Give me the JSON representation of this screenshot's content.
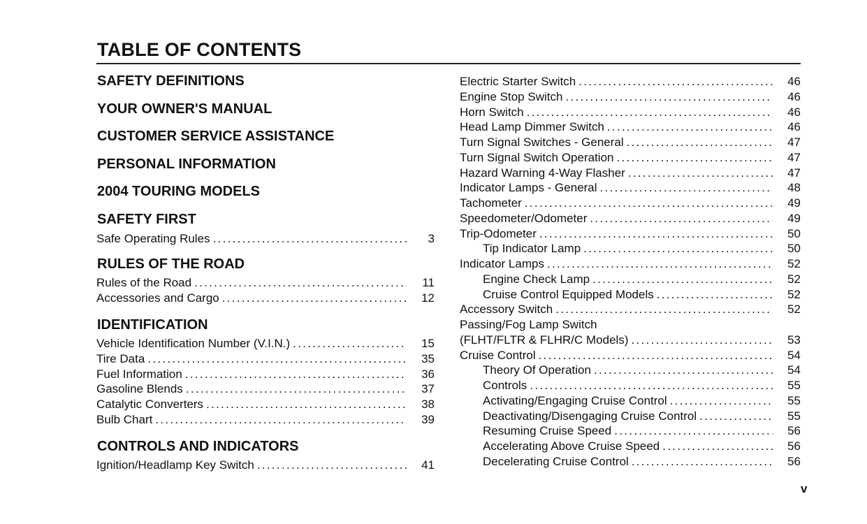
{
  "title": "TABLE OF CONTENTS",
  "page_number": "v",
  "left_column": [
    {
      "type": "heading",
      "text": "SAFETY DEFINITIONS"
    },
    {
      "type": "heading",
      "text": "YOUR OWNER'S MANUAL"
    },
    {
      "type": "heading",
      "text": "CUSTOMER SERVICE ASSISTANCE"
    },
    {
      "type": "heading",
      "text": "PERSONAL INFORMATION"
    },
    {
      "type": "heading",
      "text": "2004 TOURING MODELS"
    },
    {
      "type": "heading",
      "text": "SAFETY FIRST"
    },
    {
      "type": "entry",
      "text": "Safe Operating Rules",
      "page": "3"
    },
    {
      "type": "heading",
      "text": "RULES OF THE ROAD"
    },
    {
      "type": "entry",
      "text": "Rules of the Road",
      "page": "11"
    },
    {
      "type": "entry",
      "text": "Accessories and Cargo",
      "page": "12"
    },
    {
      "type": "heading",
      "text": "IDENTIFICATION"
    },
    {
      "type": "entry",
      "text": "Vehicle Identification Number (V.I.N.)",
      "page": "15"
    },
    {
      "type": "entry",
      "text": "Tire Data",
      "page": "35"
    },
    {
      "type": "entry",
      "text": "Fuel Information",
      "page": "36"
    },
    {
      "type": "entry",
      "text": "Gasoline Blends",
      "page": "37"
    },
    {
      "type": "entry",
      "text": "Catalytic Converters",
      "page": "38"
    },
    {
      "type": "entry",
      "text": "Bulb Chart",
      "page": "39"
    },
    {
      "type": "heading",
      "text": "CONTROLS AND INDICATORS"
    },
    {
      "type": "entry",
      "text": "Ignition/Headlamp Key Switch",
      "page": "41"
    }
  ],
  "right_column": [
    {
      "text": "Electric Starter Switch",
      "page": "46",
      "indent": false
    },
    {
      "text": "Engine Stop Switch",
      "page": "46",
      "indent": false
    },
    {
      "text": "Horn Switch",
      "page": "46",
      "indent": false
    },
    {
      "text": "Head Lamp Dimmer Switch",
      "page": "46",
      "indent": false
    },
    {
      "text": "Turn Signal Switches - General",
      "page": "47",
      "indent": false
    },
    {
      "text": "Turn Signal Switch Operation",
      "page": "47",
      "indent": false
    },
    {
      "text": "Hazard Warning 4-Way Flasher",
      "page": "47",
      "indent": false
    },
    {
      "text": "Indicator Lamps - General",
      "page": "48",
      "indent": false
    },
    {
      "text": "Tachometer",
      "page": "49",
      "indent": false
    },
    {
      "text": "Speedometer/Odometer",
      "page": "49",
      "indent": false
    },
    {
      "text": "Trip-Odometer",
      "page": "50",
      "indent": false
    },
    {
      "text": "Tip Indicator Lamp",
      "page": "50",
      "indent": true
    },
    {
      "text": "Indicator Lamps",
      "page": "52",
      "indent": false
    },
    {
      "text": "Engine Check Lamp",
      "page": "52",
      "indent": true
    },
    {
      "text": "Cruise Control Equipped Models",
      "page": "52",
      "indent": true
    },
    {
      "text": "Accessory Switch",
      "page": "52",
      "indent": false
    },
    {
      "text": "Passing/Fog Lamp Switch",
      "page": "",
      "indent": false
    },
    {
      "text": "(FLHT/FLTR & FLHR/C Models)",
      "page": "53",
      "indent": false
    },
    {
      "text": "Cruise Control",
      "page": "54",
      "indent": false
    },
    {
      "text": "Theory Of Operation",
      "page": "54",
      "indent": true
    },
    {
      "text": "Controls",
      "page": "55",
      "indent": true
    },
    {
      "text": "Activating/Engaging Cruise Control",
      "page": "55",
      "indent": true
    },
    {
      "text": "Deactivating/Disengaging Cruise Control",
      "page": "55",
      "indent": true
    },
    {
      "text": "Resuming Cruise Speed",
      "page": "56",
      "indent": true
    },
    {
      "text": "Accelerating Above Cruise Speed",
      "page": "56",
      "indent": true
    },
    {
      "text": "Decelerating Cruise Control",
      "page": "56",
      "indent": true
    }
  ]
}
